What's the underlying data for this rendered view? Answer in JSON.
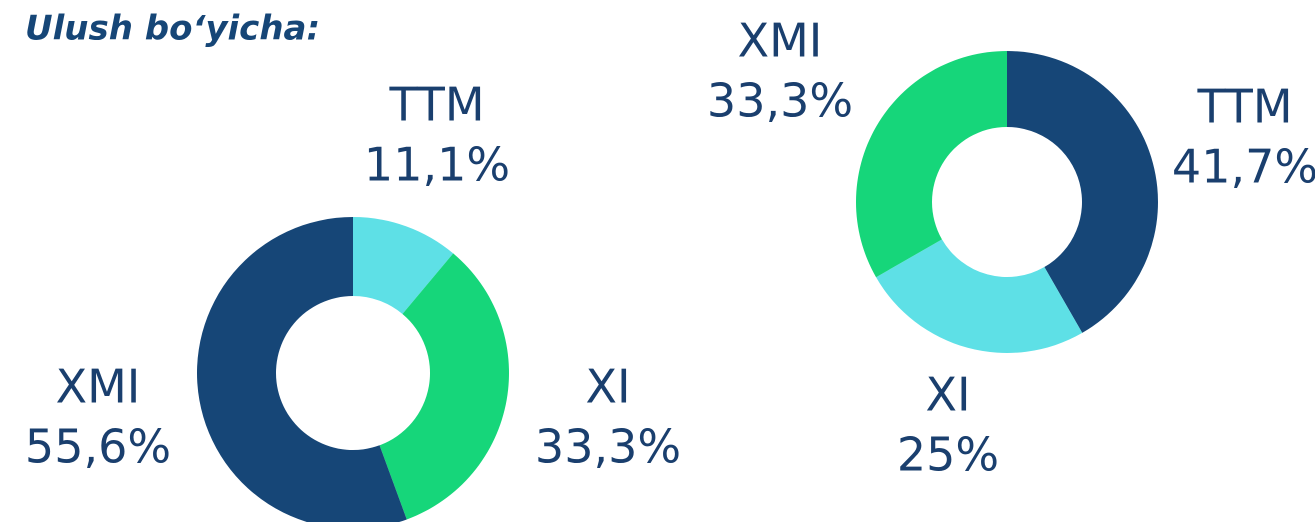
{
  "title": "Ulush boʻyicha:",
  "chart_data": [
    {
      "type": "pie",
      "donut": true,
      "categories": [
        "TTM",
        "XI",
        "XMI"
      ],
      "values": [
        11.1,
        33.3,
        55.6
      ],
      "value_labels": [
        "11,1%",
        "33,3%",
        "55,6%"
      ],
      "colors": [
        "#5ee0e6",
        "#16d67a",
        "#164677"
      ]
    },
    {
      "type": "pie",
      "donut": true,
      "categories": [
        "TTM",
        "XI",
        "XMI"
      ],
      "values": [
        41.7,
        25,
        33.3
      ],
      "value_labels": [
        "41,7%",
        "25%",
        "33,3%"
      ],
      "colors": [
        "#164677",
        "#5ee0e6",
        "#16d67a"
      ]
    }
  ]
}
